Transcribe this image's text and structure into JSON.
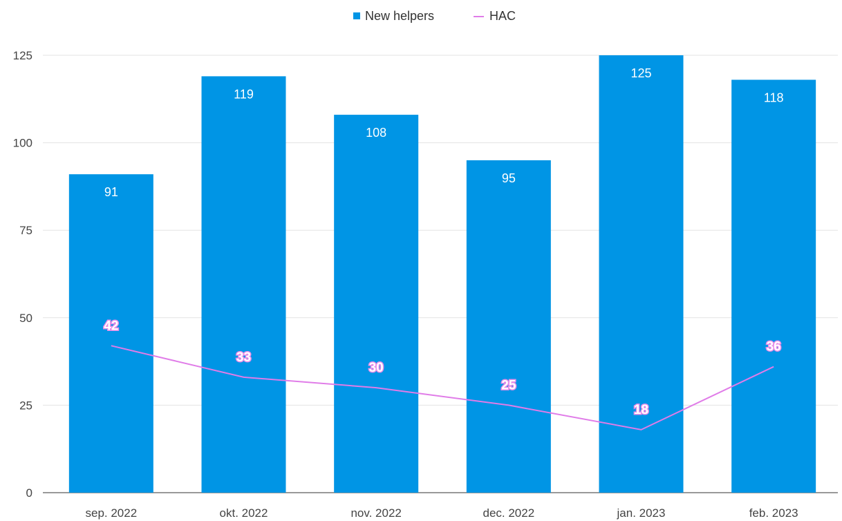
{
  "chart_data": {
    "type": "bar",
    "categories": [
      "sep. 2022",
      "okt. 2022",
      "nov. 2022",
      "dec. 2022",
      "jan. 2023",
      "feb. 2023"
    ],
    "series": [
      {
        "name": "New helpers",
        "type": "bar",
        "color": "#0095e5",
        "values": [
          91,
          119,
          108,
          95,
          125,
          118
        ]
      },
      {
        "name": "HAC",
        "type": "line",
        "color": "#e07ce8",
        "values": [
          42,
          33,
          30,
          25,
          18,
          36
        ]
      }
    ],
    "ylim": [
      0,
      125
    ],
    "yticks": [
      0,
      25,
      50,
      75,
      100,
      125
    ],
    "grid": true,
    "legend_position": "top-center"
  }
}
